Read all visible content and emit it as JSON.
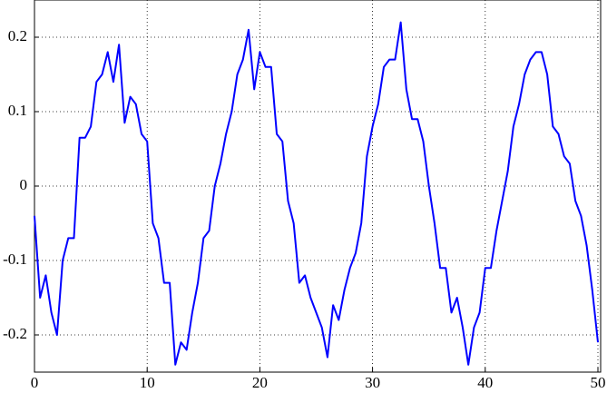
{
  "chart_data": {
    "type": "line",
    "color": "#0000ff",
    "grid": true,
    "x": [
      0,
      0.5,
      1,
      1.5,
      2,
      2.5,
      3,
      3.5,
      4,
      4.5,
      5,
      5.5,
      6,
      6.5,
      7,
      7.5,
      8,
      8.5,
      9,
      9.5,
      10,
      10.5,
      11,
      11.5,
      12,
      12.5,
      13,
      13.5,
      14,
      14.5,
      15,
      15.5,
      16,
      16.5,
      17,
      17.5,
      18,
      18.5,
      19,
      19.5,
      20,
      20.5,
      21,
      21.5,
      22,
      22.5,
      23,
      23.5,
      24,
      24.5,
      25,
      25.5,
      26,
      26.5,
      27,
      27.5,
      28,
      28.5,
      29,
      29.5,
      30,
      30.5,
      31,
      31.5,
      32,
      32.5,
      33,
      33.5,
      34,
      34.5,
      35,
      35.5,
      36,
      36.5,
      37,
      37.5,
      38,
      38.5,
      39,
      39.5,
      40,
      40.5,
      41,
      41.5,
      42,
      42.5,
      43,
      43.5,
      44,
      44.5,
      45,
      45.5,
      46,
      46.5,
      47,
      47.5,
      48,
      48.5,
      49,
      49.5,
      50
    ],
    "values": [
      -0.04,
      -0.15,
      -0.12,
      -0.17,
      -0.2,
      -0.1,
      -0.07,
      -0.07,
      0.065,
      0.065,
      0.08,
      0.14,
      0.15,
      0.18,
      0.14,
      0.19,
      0.085,
      0.12,
      0.11,
      0.07,
      0.06,
      -0.05,
      -0.07,
      -0.13,
      -0.13,
      -0.24,
      -0.21,
      -0.22,
      -0.17,
      -0.13,
      -0.07,
      -0.06,
      0,
      0.03,
      0.07,
      0.1,
      0.15,
      0.17,
      0.21,
      0.13,
      0.18,
      0.16,
      0.16,
      0.07,
      0.06,
      -0.02,
      -0.05,
      -0.13,
      -0.12,
      -0.15,
      -0.17,
      -0.19,
      -0.23,
      -0.16,
      -0.18,
      -0.14,
      -0.11,
      -0.09,
      -0.05,
      0.04,
      0.08,
      0.11,
      0.16,
      0.17,
      0.17,
      0.22,
      0.13,
      0.09,
      0.09,
      0.06,
      0,
      -0.05,
      -0.11,
      -0.11,
      -0.17,
      -0.15,
      -0.19,
      -0.24,
      -0.19,
      -0.17,
      -0.11,
      -0.11,
      -0.06,
      -0.02,
      0.02,
      0.08,
      0.11,
      0.15,
      0.17,
      0.18,
      0.18,
      0.15,
      0.08,
      0.07,
      0.04,
      0.03,
      -0.02,
      -0.04,
      -0.08,
      -0.14,
      -0.21
    ],
    "xlim": [
      0,
      50
    ],
    "xticks": [
      0,
      10,
      20,
      30,
      40,
      50
    ],
    "ylim": [
      -0.25,
      0.25
    ],
    "yticks": [
      -0.2,
      -0.1,
      0,
      0.1,
      0.2
    ]
  }
}
